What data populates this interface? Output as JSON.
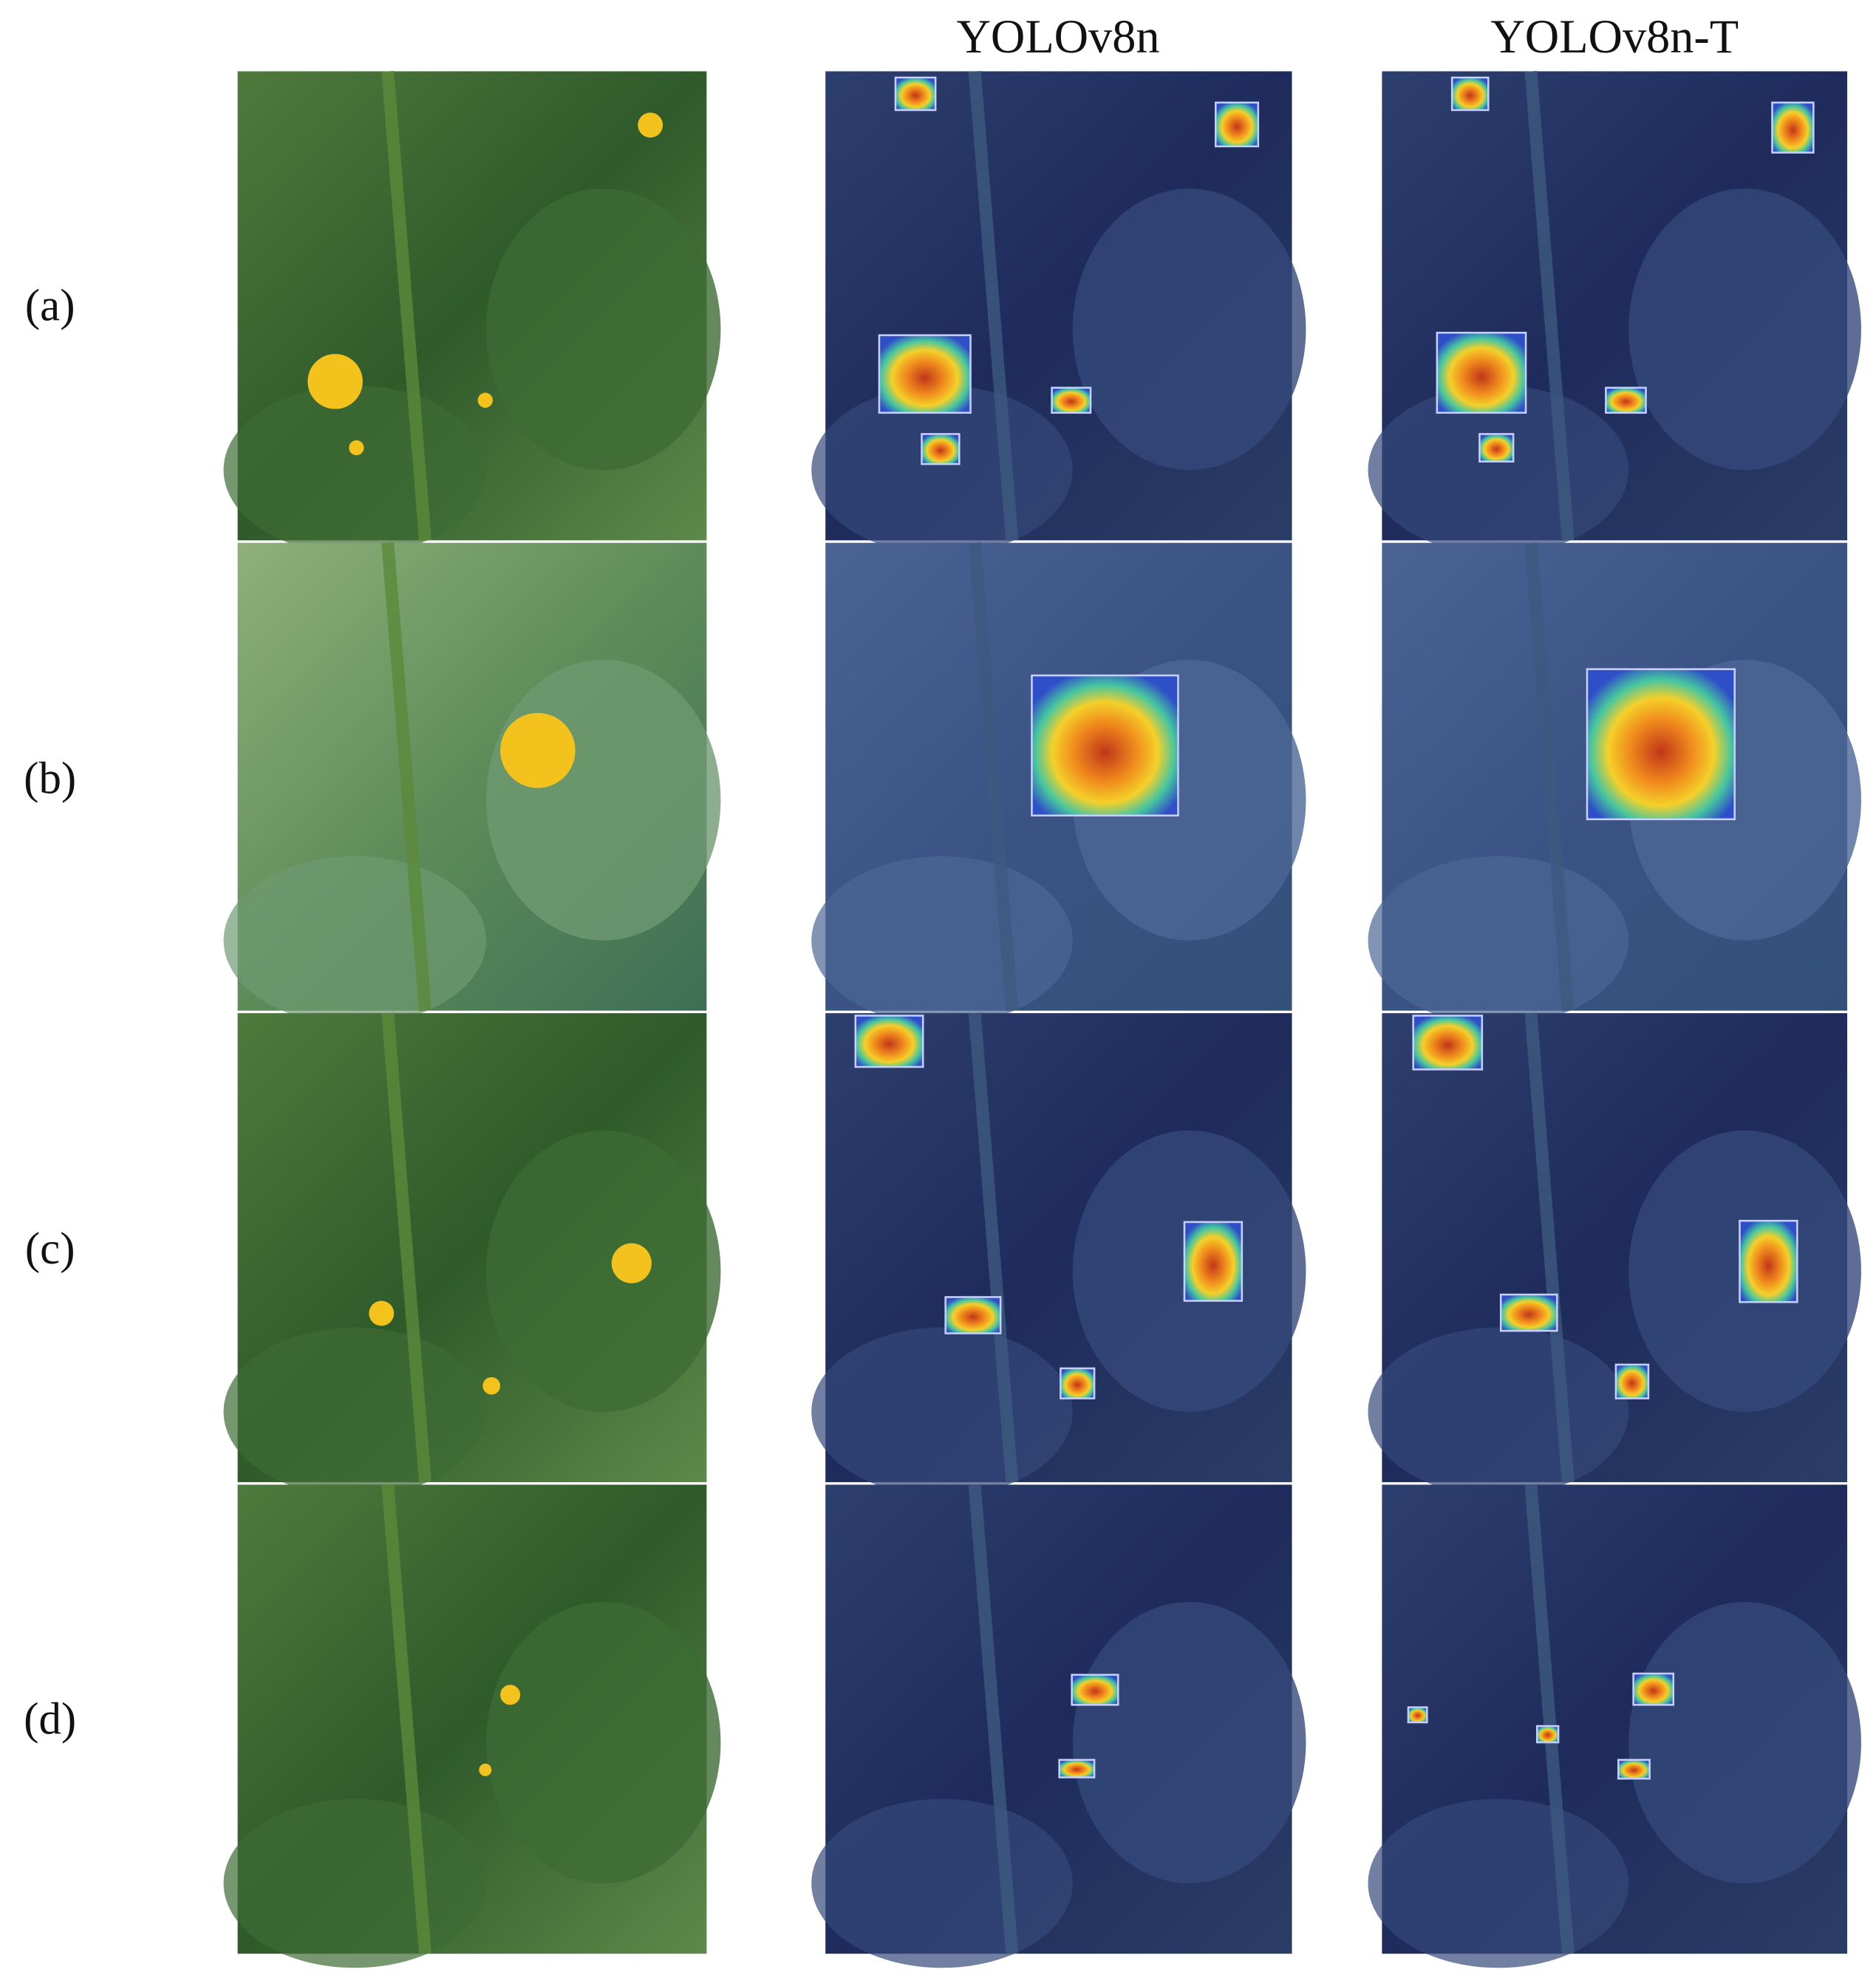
{
  "header": {
    "columns": [
      "YOLOv8n",
      "YOLOv8n-T"
    ]
  },
  "rows": [
    {
      "label": "(a)"
    },
    {
      "label": "(b)"
    },
    {
      "label": "(c)"
    },
    {
      "label": "(d)"
    }
  ]
}
